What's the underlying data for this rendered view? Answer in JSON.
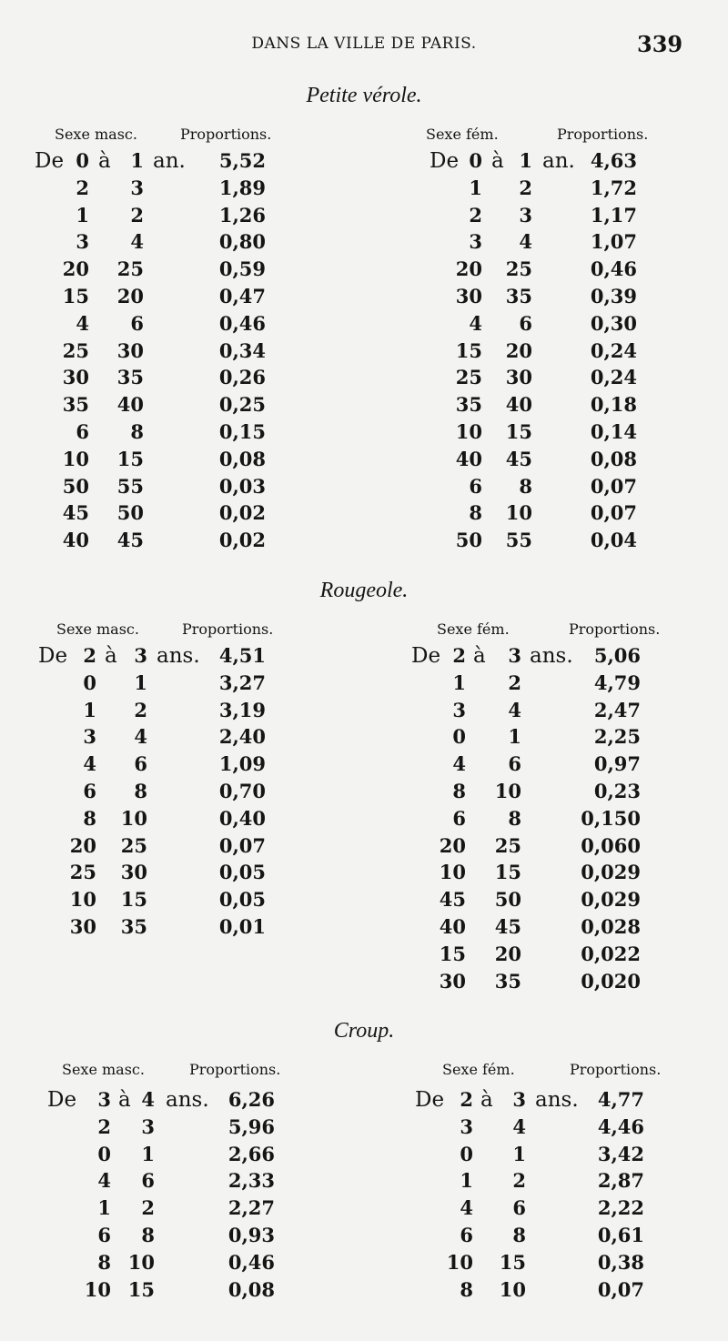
{
  "header": {
    "running_title": "DANS LA VILLE DE PARIS.",
    "page_number": "339"
  },
  "sections": [
    {
      "title": "Petite vérole.",
      "tables": [
        {
          "sex_label": "Sexe masc.",
          "proportions_label": "Proportions.",
          "prefix": "De",
          "between": "à",
          "unit": "an.",
          "rows": [
            {
              "from": "0",
              "to": "1",
              "value": "5,52"
            },
            {
              "from": "2",
              "to": "3",
              "value": "1,89"
            },
            {
              "from": "1",
              "to": "2",
              "value": "1,26"
            },
            {
              "from": "3",
              "to": "4",
              "value": "0,80"
            },
            {
              "from": "20",
              "to": "25",
              "value": "0,59"
            },
            {
              "from": "15",
              "to": "20",
              "value": "0,47"
            },
            {
              "from": "4",
              "to": "6",
              "value": "0,46"
            },
            {
              "from": "25",
              "to": "30",
              "value": "0,34"
            },
            {
              "from": "30",
              "to": "35",
              "value": "0,26"
            },
            {
              "from": "35",
              "to": "40",
              "value": "0,25"
            },
            {
              "from": "6",
              "to": "8",
              "value": "0,15"
            },
            {
              "from": "10",
              "to": "15",
              "value": "0,08"
            },
            {
              "from": "50",
              "to": "55",
              "value": "0,03"
            },
            {
              "from": "45",
              "to": "50",
              "value": "0,02"
            },
            {
              "from": "40",
              "to": "45",
              "value": "0,02"
            }
          ]
        },
        {
          "sex_label": "Sexe fém.",
          "proportions_label": "Proportions.",
          "prefix": "De",
          "between": "à",
          "unit": "an.",
          "rows": [
            {
              "from": "0",
              "to": "1",
              "value": "4,63"
            },
            {
              "from": "1",
              "to": "2",
              "value": "1,72"
            },
            {
              "from": "2",
              "to": "3",
              "value": "1,17"
            },
            {
              "from": "3",
              "to": "4",
              "value": "1,07"
            },
            {
              "from": "20",
              "to": "25",
              "value": "0,46"
            },
            {
              "from": "30",
              "to": "35",
              "value": "0,39"
            },
            {
              "from": "4",
              "to": "6",
              "value": "0,30"
            },
            {
              "from": "15",
              "to": "20",
              "value": "0,24"
            },
            {
              "from": "25",
              "to": "30",
              "value": "0,24"
            },
            {
              "from": "35",
              "to": "40",
              "value": "0,18"
            },
            {
              "from": "10",
              "to": "15",
              "value": "0,14"
            },
            {
              "from": "40",
              "to": "45",
              "value": "0,08"
            },
            {
              "from": "6",
              "to": "8",
              "value": "0,07"
            },
            {
              "from": "8",
              "to": "10",
              "value": "0,07"
            },
            {
              "from": "50",
              "to": "55",
              "value": "0,04"
            }
          ]
        }
      ]
    },
    {
      "title": "Rougeole.",
      "tables": [
        {
          "sex_label": "Sexe masc.",
          "proportions_label": "Proportions.",
          "prefix": "De",
          "between": "à",
          "unit": "ans.",
          "rows": [
            {
              "from": "2",
              "to": "3",
              "value": "4,51"
            },
            {
              "from": "0",
              "to": "1",
              "value": "3,27"
            },
            {
              "from": "1",
              "to": "2",
              "value": "3,19"
            },
            {
              "from": "3",
              "to": "4",
              "value": "2,40"
            },
            {
              "from": "4",
              "to": "6",
              "value": "1,09"
            },
            {
              "from": "6",
              "to": "8",
              "value": "0,70"
            },
            {
              "from": "8",
              "to": "10",
              "value": "0,40"
            },
            {
              "from": "20",
              "to": "25",
              "value": "0,07"
            },
            {
              "from": "25",
              "to": "30",
              "value": "0,05"
            },
            {
              "from": "10",
              "to": "15",
              "value": "0,05"
            },
            {
              "from": "30",
              "to": "35",
              "value": "0,01"
            }
          ]
        },
        {
          "sex_label": "Sexe fém.",
          "proportions_label": "Proportions.",
          "prefix": "De",
          "between": "à",
          "unit": "ans.",
          "rows": [
            {
              "from": "2",
              "to": "3",
              "value": "5,06"
            },
            {
              "from": "1",
              "to": "2",
              "value": "4,79"
            },
            {
              "from": "3",
              "to": "4",
              "value": "2,47"
            },
            {
              "from": "0",
              "to": "1",
              "value": "2,25"
            },
            {
              "from": "4",
              "to": "6",
              "value": "0,97"
            },
            {
              "from": "8",
              "to": "10",
              "value": "0,23"
            },
            {
              "from": "6",
              "to": "8",
              "value": "0,150"
            },
            {
              "from": "20",
              "to": "25",
              "value": "0,060"
            },
            {
              "from": "10",
              "to": "15",
              "value": "0,029"
            },
            {
              "from": "45",
              "to": "50",
              "value": "0,029"
            },
            {
              "from": "40",
              "to": "45",
              "value": "0,028"
            },
            {
              "from": "15",
              "to": "20",
              "value": "0,022"
            },
            {
              "from": "30",
              "to": "35",
              "value": "0,020"
            }
          ]
        }
      ]
    },
    {
      "title": "Croup.",
      "tables": [
        {
          "sex_label": "Sexe masc.",
          "proportions_label": "Proportions.",
          "prefix": "De",
          "between": "à",
          "unit": "ans.",
          "rows": [
            {
              "from": "3",
              "to": "4",
              "value": "6,26"
            },
            {
              "from": "2",
              "to": "3",
              "value": "5,96"
            },
            {
              "from": "0",
              "to": "1",
              "value": "2,66"
            },
            {
              "from": "4",
              "to": "6",
              "value": "2,33"
            },
            {
              "from": "1",
              "to": "2",
              "value": "2,27"
            },
            {
              "from": "6",
              "to": "8",
              "value": "0,93"
            },
            {
              "from": "8",
              "to": "10",
              "value": "0,46"
            },
            {
              "from": "10",
              "to": "15",
              "value": "0,08"
            }
          ]
        },
        {
          "sex_label": "Sexe fém.",
          "proportions_label": "Proportions.",
          "prefix": "De",
          "between": "à",
          "unit": "ans.",
          "rows": [
            {
              "from": "2",
              "to": "3",
              "value": "4,77"
            },
            {
              "from": "3",
              "to": "4",
              "value": "4,46"
            },
            {
              "from": "0",
              "to": "1",
              "value": "3,42"
            },
            {
              "from": "1",
              "to": "2",
              "value": "2,87"
            },
            {
              "from": "4",
              "to": "6",
              "value": "2,22"
            },
            {
              "from": "6",
              "to": "8",
              "value": "0,61"
            },
            {
              "from": "10",
              "to": "15",
              "value": "0,38"
            },
            {
              "from": "8",
              "to": "10",
              "value": "0,07"
            }
          ]
        }
      ]
    }
  ]
}
